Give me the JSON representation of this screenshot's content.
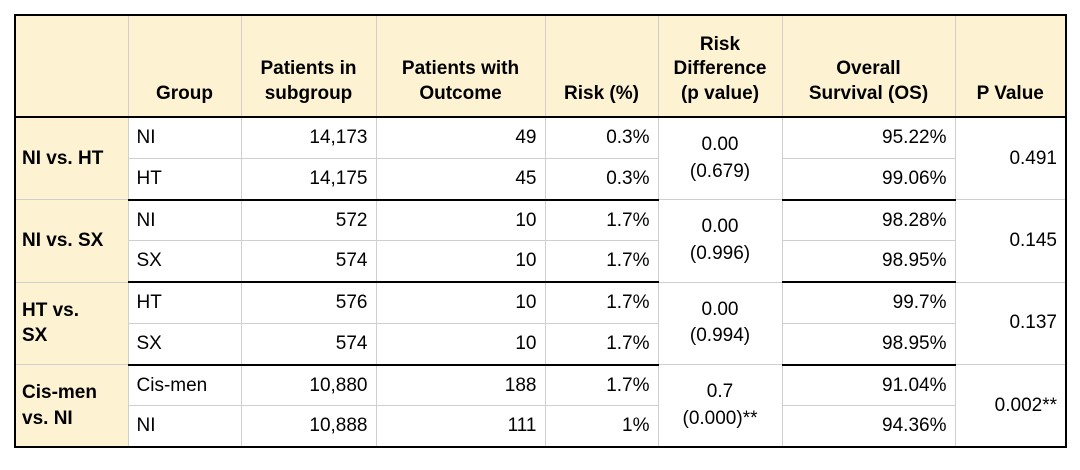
{
  "table": {
    "headers": {
      "blank": "",
      "group": "Group",
      "patients_in_subgroup": [
        "Patients in",
        "subgroup"
      ],
      "patients_with_outcome": [
        "Patients with",
        "Outcome"
      ],
      "risk": "Risk (%)",
      "risk_difference": [
        "Risk",
        "Difference",
        "(p value)"
      ],
      "overall_survival": [
        "Overall",
        "Survival (OS)"
      ],
      "p_value": "P Value"
    },
    "blocks": [
      {
        "label": [
          "NI vs. HT"
        ],
        "risk_difference": [
          "0.00",
          "(0.679)"
        ],
        "p_value": "0.491",
        "rows": [
          {
            "group": "NI",
            "patients": "14,173",
            "outcome": "49",
            "risk": "0.3%",
            "os": "95.22%"
          },
          {
            "group": "HT",
            "patients": "14,175",
            "outcome": "45",
            "risk": "0.3%",
            "os": "99.06%"
          }
        ]
      },
      {
        "label": [
          "NI vs. SX"
        ],
        "risk_difference": [
          "0.00",
          "(0.996)"
        ],
        "p_value": "0.145",
        "rows": [
          {
            "group": "NI",
            "patients": "572",
            "outcome": "10",
            "risk": "1.7%",
            "os": "98.28%"
          },
          {
            "group": "SX",
            "patients": "574",
            "outcome": "10",
            "risk": "1.7%",
            "os": "98.95%"
          }
        ]
      },
      {
        "label": [
          "HT vs.",
          "SX"
        ],
        "risk_difference": [
          "0.00",
          "(0.994)"
        ],
        "p_value": "0.137",
        "rows": [
          {
            "group": "HT",
            "patients": "576",
            "outcome": "10",
            "risk": "1.7%",
            "os": "99.7%"
          },
          {
            "group": "SX",
            "patients": "574",
            "outcome": "10",
            "risk": "1.7%",
            "os": "98.95%"
          }
        ]
      },
      {
        "label": [
          "Cis-men",
          "vs. NI"
        ],
        "risk_difference": [
          "0.7",
          "(0.000)**"
        ],
        "p_value": "0.002**",
        "rows": [
          {
            "group": "Cis-men",
            "patients": "10,880",
            "outcome": "188",
            "risk": "1.7%",
            "os": "91.04%"
          },
          {
            "group": "NI",
            "patients": "10,888",
            "outcome": "111",
            "risk": "1%",
            "os": "94.36%"
          }
        ]
      }
    ]
  }
}
